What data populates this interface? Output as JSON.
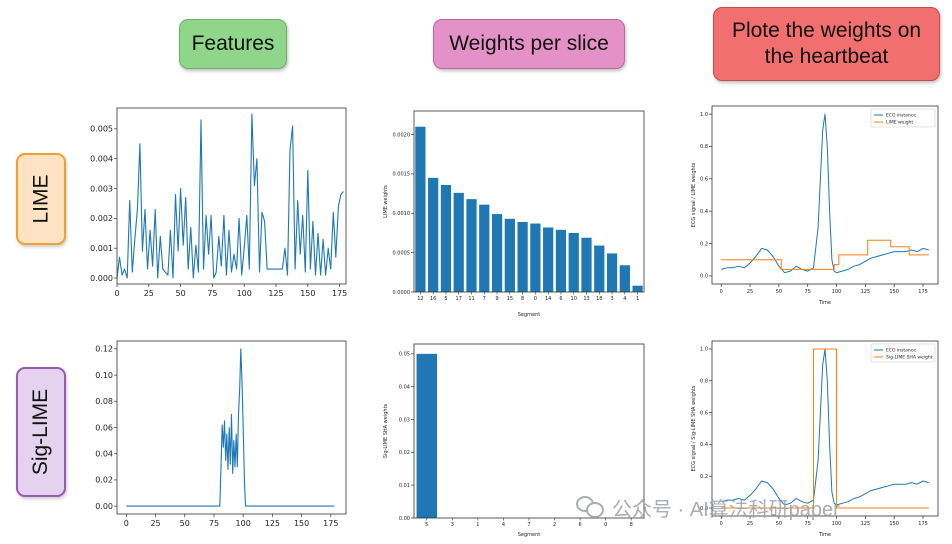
{
  "headers": {
    "features": "Features",
    "weights": "Weights per slice",
    "plote_line1": "Plote the weights on",
    "plote_line2": "the heartbeat"
  },
  "rows": {
    "lime": "LIME",
    "sig_lime": "Sig-LIME"
  },
  "watermark": "公众号 · AI算法科研paper",
  "colors": {
    "features_bg": "#8fd58a",
    "weights_bg": "#e391c6",
    "plote_bg": "#f26f6f",
    "lime_bg": "#fde3c4",
    "lime_border": "#f0a030",
    "sig_bg": "#e4d2ee",
    "sig_border": "#9a5ab0",
    "series_blue": "#1f77b4",
    "series_orange": "#ff7f0e"
  },
  "chart_data": [
    {
      "id": "lime-features",
      "type": "line",
      "x": [
        0,
        2,
        4,
        6,
        8,
        10,
        12,
        14,
        16,
        18,
        20,
        22,
        24,
        26,
        28,
        30,
        32,
        34,
        36,
        38,
        40,
        42,
        44,
        46,
        48,
        50,
        52,
        54,
        56,
        58,
        60,
        62,
        64,
        66,
        68,
        70,
        72,
        74,
        76,
        78,
        80,
        82,
        84,
        86,
        88,
        90,
        92,
        94,
        96,
        98,
        100,
        102,
        104,
        106,
        108,
        110,
        112,
        114,
        116,
        118,
        120,
        122,
        124,
        126,
        128,
        130,
        132,
        134,
        136,
        138,
        140,
        142,
        144,
        146,
        148,
        150,
        152,
        154,
        156,
        158,
        160,
        162,
        164,
        166,
        168,
        170,
        172,
        174,
        176,
        178
      ],
      "series": [
        {
          "name": "",
          "values": [
            0.0,
            0.0007,
            0.0001,
            0.0003,
            0.0,
            0.0026,
            0.0002,
            0.0013,
            0.0023,
            0.0045,
            0.0009,
            0.0023,
            0.0003,
            0.0016,
            0.0004,
            0.0023,
            0.0,
            0.0014,
            0.0003,
            0.0002,
            0.0001,
            0.0016,
            0.0,
            0.0028,
            0.0009,
            0.003,
            0.0011,
            0.0027,
            0.0003,
            0.0017,
            0.0,
            0.0011,
            0.0002,
            0.0053,
            0.0003,
            0.0021,
            0.0008,
            0.0021,
            0.0,
            0.0002,
            0.0014,
            0.0004,
            0.0021,
            0.0001,
            0.0016,
            0.0002,
            0.0008,
            0.0003,
            0.002,
            0.0001,
            0.001,
            0.0021,
            0.0003,
            0.0055,
            0.0031,
            0.004,
            0.0002,
            0.0022,
            0.0019,
            0.0003,
            0.0003,
            0.0003,
            0.0003,
            0.0003,
            0.0003,
            0.0003,
            0.001,
            0.0001,
            0.0043,
            0.0051,
            0.0003,
            0.0026,
            0.0008,
            0.0021,
            0.0002,
            0.0036,
            0.0003,
            0.0019,
            0.0001,
            0.0015,
            0.0001,
            0.0013,
            0.0001,
            0.001,
            0.0003,
            0.0022,
            0.0007,
            0.0024,
            0.0028,
            0.0029
          ]
        }
      ],
      "xlim": [
        0,
        180
      ],
      "ylim": [
        -0.0002,
        0.0057
      ],
      "xticks": [
        0,
        25,
        50,
        75,
        100,
        125,
        150,
        175
      ],
      "xtick_labels": [
        "0",
        "25",
        "50",
        "75",
        "100",
        "125",
        "150",
        "175"
      ],
      "yticks": [
        0,
        0.001,
        0.002,
        0.003,
        0.004,
        0.005
      ],
      "ytick_labels": [
        "0.000",
        "0.001",
        "0.002",
        "0.003",
        "0.004",
        "0.005"
      ],
      "xlabel": "",
      "ylabel": "",
      "grid": false
    },
    {
      "id": "sig-features",
      "type": "line",
      "x": [
        0,
        2,
        4,
        6,
        8,
        10,
        12,
        14,
        16,
        18,
        20,
        22,
        24,
        26,
        28,
        30,
        32,
        34,
        36,
        38,
        40,
        42,
        44,
        46,
        48,
        50,
        52,
        54,
        56,
        58,
        60,
        62,
        64,
        66,
        68,
        70,
        72,
        74,
        76,
        78,
        80,
        81,
        82,
        83,
        84,
        85,
        86,
        87,
        88,
        89,
        90,
        91,
        92,
        93,
        94,
        95,
        96,
        97,
        98,
        99,
        100,
        101,
        102,
        104,
        106,
        108,
        110,
        112,
        114,
        116,
        118,
        120,
        122,
        124,
        126,
        128,
        130,
        132,
        134,
        136,
        138,
        140,
        142,
        144,
        146,
        148,
        150,
        152,
        154,
        156,
        158,
        160,
        162,
        164,
        166,
        168,
        170,
        172,
        174,
        176,
        178
      ],
      "series": [
        {
          "name": "",
          "values": [
            0,
            0,
            0,
            0,
            0,
            0,
            0,
            0,
            0,
            0,
            0,
            0,
            0,
            0,
            0,
            0,
            0,
            0,
            0,
            0,
            0,
            0,
            0,
            0,
            0,
            0,
            0,
            0,
            0,
            0,
            0,
            0,
            0,
            0,
            0,
            0,
            0,
            0,
            0,
            0,
            0,
            0.03,
            0.062,
            0.045,
            0.065,
            0.035,
            0.055,
            0.028,
            0.06,
            0.032,
            0.07,
            0.025,
            0.05,
            0.03,
            0.055,
            0.03,
            0.07,
            0.09,
            0.12,
            0.095,
            0.06,
            0.02,
            0,
            0,
            0,
            0,
            0,
            0,
            0,
            0,
            0,
            0,
            0,
            0,
            0,
            0,
            0,
            0,
            0,
            0,
            0,
            0,
            0,
            0,
            0,
            0,
            0,
            0,
            0,
            0,
            0,
            0,
            0,
            0,
            0,
            0,
            0,
            0,
            0,
            0,
            0
          ]
        }
      ],
      "xlim": [
        -8,
        188
      ],
      "ylim": [
        -0.006,
        0.126
      ],
      "xticks": [
        0,
        25,
        50,
        75,
        100,
        125,
        150,
        175
      ],
      "xtick_labels": [
        "0",
        "25",
        "50",
        "75",
        "100",
        "125",
        "150",
        "175"
      ],
      "yticks": [
        0,
        0.02,
        0.04,
        0.06,
        0.08,
        0.1,
        0.12
      ],
      "ytick_labels": [
        "0.00",
        "0.02",
        "0.04",
        "0.06",
        "0.08",
        "0.10",
        "0.12"
      ],
      "xlabel": "",
      "ylabel": "",
      "grid": false
    },
    {
      "id": "lime-weights",
      "type": "bar",
      "categories": [
        "12",
        "16",
        "5",
        "17",
        "11",
        "7",
        "9",
        "15",
        "8",
        "0",
        "14",
        "6",
        "10",
        "13",
        "18",
        "3",
        "4",
        "1"
      ],
      "values": [
        0.0021,
        0.00145,
        0.00136,
        0.00126,
        0.00118,
        0.00111,
        0.00099,
        0.00093,
        0.00089,
        0.00087,
        0.00082,
        0.00079,
        0.00075,
        0.00069,
        0.00059,
        0.00049,
        0.00034,
        8e-05
      ],
      "xlabel": "Segment",
      "ylabel": "LIME weights",
      "ylim": [
        0,
        0.0023
      ],
      "yticks": [
        0,
        0.0005,
        0.001,
        0.0015,
        0.002
      ],
      "ytick_labels": [
        "0.0000",
        "0.0005",
        "0.0010",
        "0.0015",
        "0.0020"
      ]
    },
    {
      "id": "sig-weights",
      "type": "bar",
      "categories": [
        "5",
        "3",
        "1",
        "4",
        "7",
        "2",
        "6",
        "0",
        "8"
      ],
      "values": [
        0.05,
        0,
        0,
        0,
        0,
        0,
        0,
        0,
        0
      ],
      "xlabel": "Segment",
      "ylabel": "Sig-LIME SHA weights",
      "ylim": [
        0,
        0.053
      ],
      "yticks": [
        0,
        0.01,
        0.02,
        0.03,
        0.04,
        0.05
      ],
      "ytick_labels": [
        "0.00",
        "0.01",
        "0.02",
        "0.03",
        "0.04",
        "0.05"
      ]
    },
    {
      "id": "lime-heartbeat",
      "type": "line",
      "xlabel": "Time",
      "ylabel": "ECG signal / LIME weights",
      "xlim": [
        -8,
        188
      ],
      "ylim": [
        -0.05,
        1.05
      ],
      "xticks": [
        0,
        25,
        50,
        75,
        100,
        125,
        150,
        175
      ],
      "xtick_labels": [
        "0",
        "25",
        "50",
        "75",
        "100",
        "125",
        "150",
        "175"
      ],
      "yticks": [
        0,
        0.2,
        0.4,
        0.6,
        0.8,
        1.0
      ],
      "ytick_labels": [
        "0.0",
        "0.2",
        "0.4",
        "0.6",
        "0.8",
        "1.0"
      ],
      "legend": "top-right",
      "series": [
        {
          "name": "ECG instance",
          "x": [
            0,
            5,
            10,
            15,
            20,
            25,
            30,
            35,
            40,
            45,
            50,
            55,
            60,
            65,
            70,
            75,
            80,
            84,
            86,
            88,
            90,
            92,
            94,
            96,
            98,
            100,
            105,
            110,
            115,
            120,
            125,
            130,
            135,
            140,
            145,
            150,
            155,
            160,
            165,
            170,
            175,
            180
          ],
          "values": [
            0.04,
            0.05,
            0.05,
            0.06,
            0.05,
            0.08,
            0.12,
            0.17,
            0.16,
            0.12,
            0.06,
            0.02,
            0.03,
            0.06,
            0.04,
            0.03,
            0.05,
            0.3,
            0.6,
            0.9,
            1.0,
            0.8,
            0.4,
            0.1,
            0.03,
            0.02,
            0.03,
            0.04,
            0.06,
            0.07,
            0.09,
            0.11,
            0.12,
            0.13,
            0.14,
            0.15,
            0.15,
            0.15,
            0.16,
            0.15,
            0.17,
            0.16
          ]
        },
        {
          "name": "LIME weight",
          "x": [
            0,
            11,
            11,
            34,
            34,
            52,
            52,
            67,
            67,
            98,
            98,
            102,
            102,
            118,
            118,
            127,
            127,
            147,
            147,
            163,
            163,
            180
          ],
          "values": [
            0.1,
            0.1,
            0.1,
            0.1,
            0.1,
            0.1,
            0.04,
            0.04,
            0.04,
            0.04,
            0.07,
            0.07,
            0.13,
            0.13,
            0.13,
            0.13,
            0.22,
            0.22,
            0.18,
            0.18,
            0.13,
            0.13
          ]
        }
      ]
    },
    {
      "id": "sig-heartbeat",
      "type": "line",
      "xlabel": "Time",
      "ylabel": "ECG signal / Sig-LIME SHA weights",
      "xlim": [
        -8,
        188
      ],
      "ylim": [
        -0.05,
        1.05
      ],
      "xticks": [
        0,
        25,
        50,
        75,
        100,
        125,
        150,
        175
      ],
      "xtick_labels": [
        "0",
        "25",
        "50",
        "75",
        "100",
        "125",
        "150",
        "175"
      ],
      "yticks": [
        0,
        0.2,
        0.4,
        0.6,
        0.8,
        1.0
      ],
      "ytick_labels": [
        "0.0",
        "0.2",
        "0.4",
        "0.6",
        "0.8",
        "1.0"
      ],
      "legend": "top-right",
      "series": [
        {
          "name": "ECG instance",
          "x": [
            0,
            5,
            10,
            15,
            20,
            25,
            30,
            35,
            40,
            45,
            50,
            55,
            60,
            65,
            70,
            75,
            80,
            84,
            86,
            88,
            90,
            92,
            94,
            96,
            98,
            100,
            105,
            110,
            115,
            120,
            125,
            130,
            135,
            140,
            145,
            150,
            155,
            160,
            165,
            170,
            175,
            180
          ],
          "values": [
            0.04,
            0.05,
            0.05,
            0.06,
            0.05,
            0.08,
            0.12,
            0.17,
            0.16,
            0.12,
            0.06,
            0.02,
            0.03,
            0.06,
            0.04,
            0.03,
            0.05,
            0.3,
            0.6,
            0.9,
            1.0,
            0.8,
            0.4,
            0.1,
            0.03,
            0.02,
            0.03,
            0.04,
            0.06,
            0.07,
            0.09,
            0.11,
            0.12,
            0.13,
            0.14,
            0.15,
            0.15,
            0.15,
            0.16,
            0.15,
            0.17,
            0.16
          ]
        },
        {
          "name": "Sig-LIME SHA weight",
          "x": [
            0,
            80,
            80,
            100,
            100,
            180
          ],
          "values": [
            0,
            0,
            1,
            1,
            0,
            0
          ]
        }
      ]
    }
  ]
}
